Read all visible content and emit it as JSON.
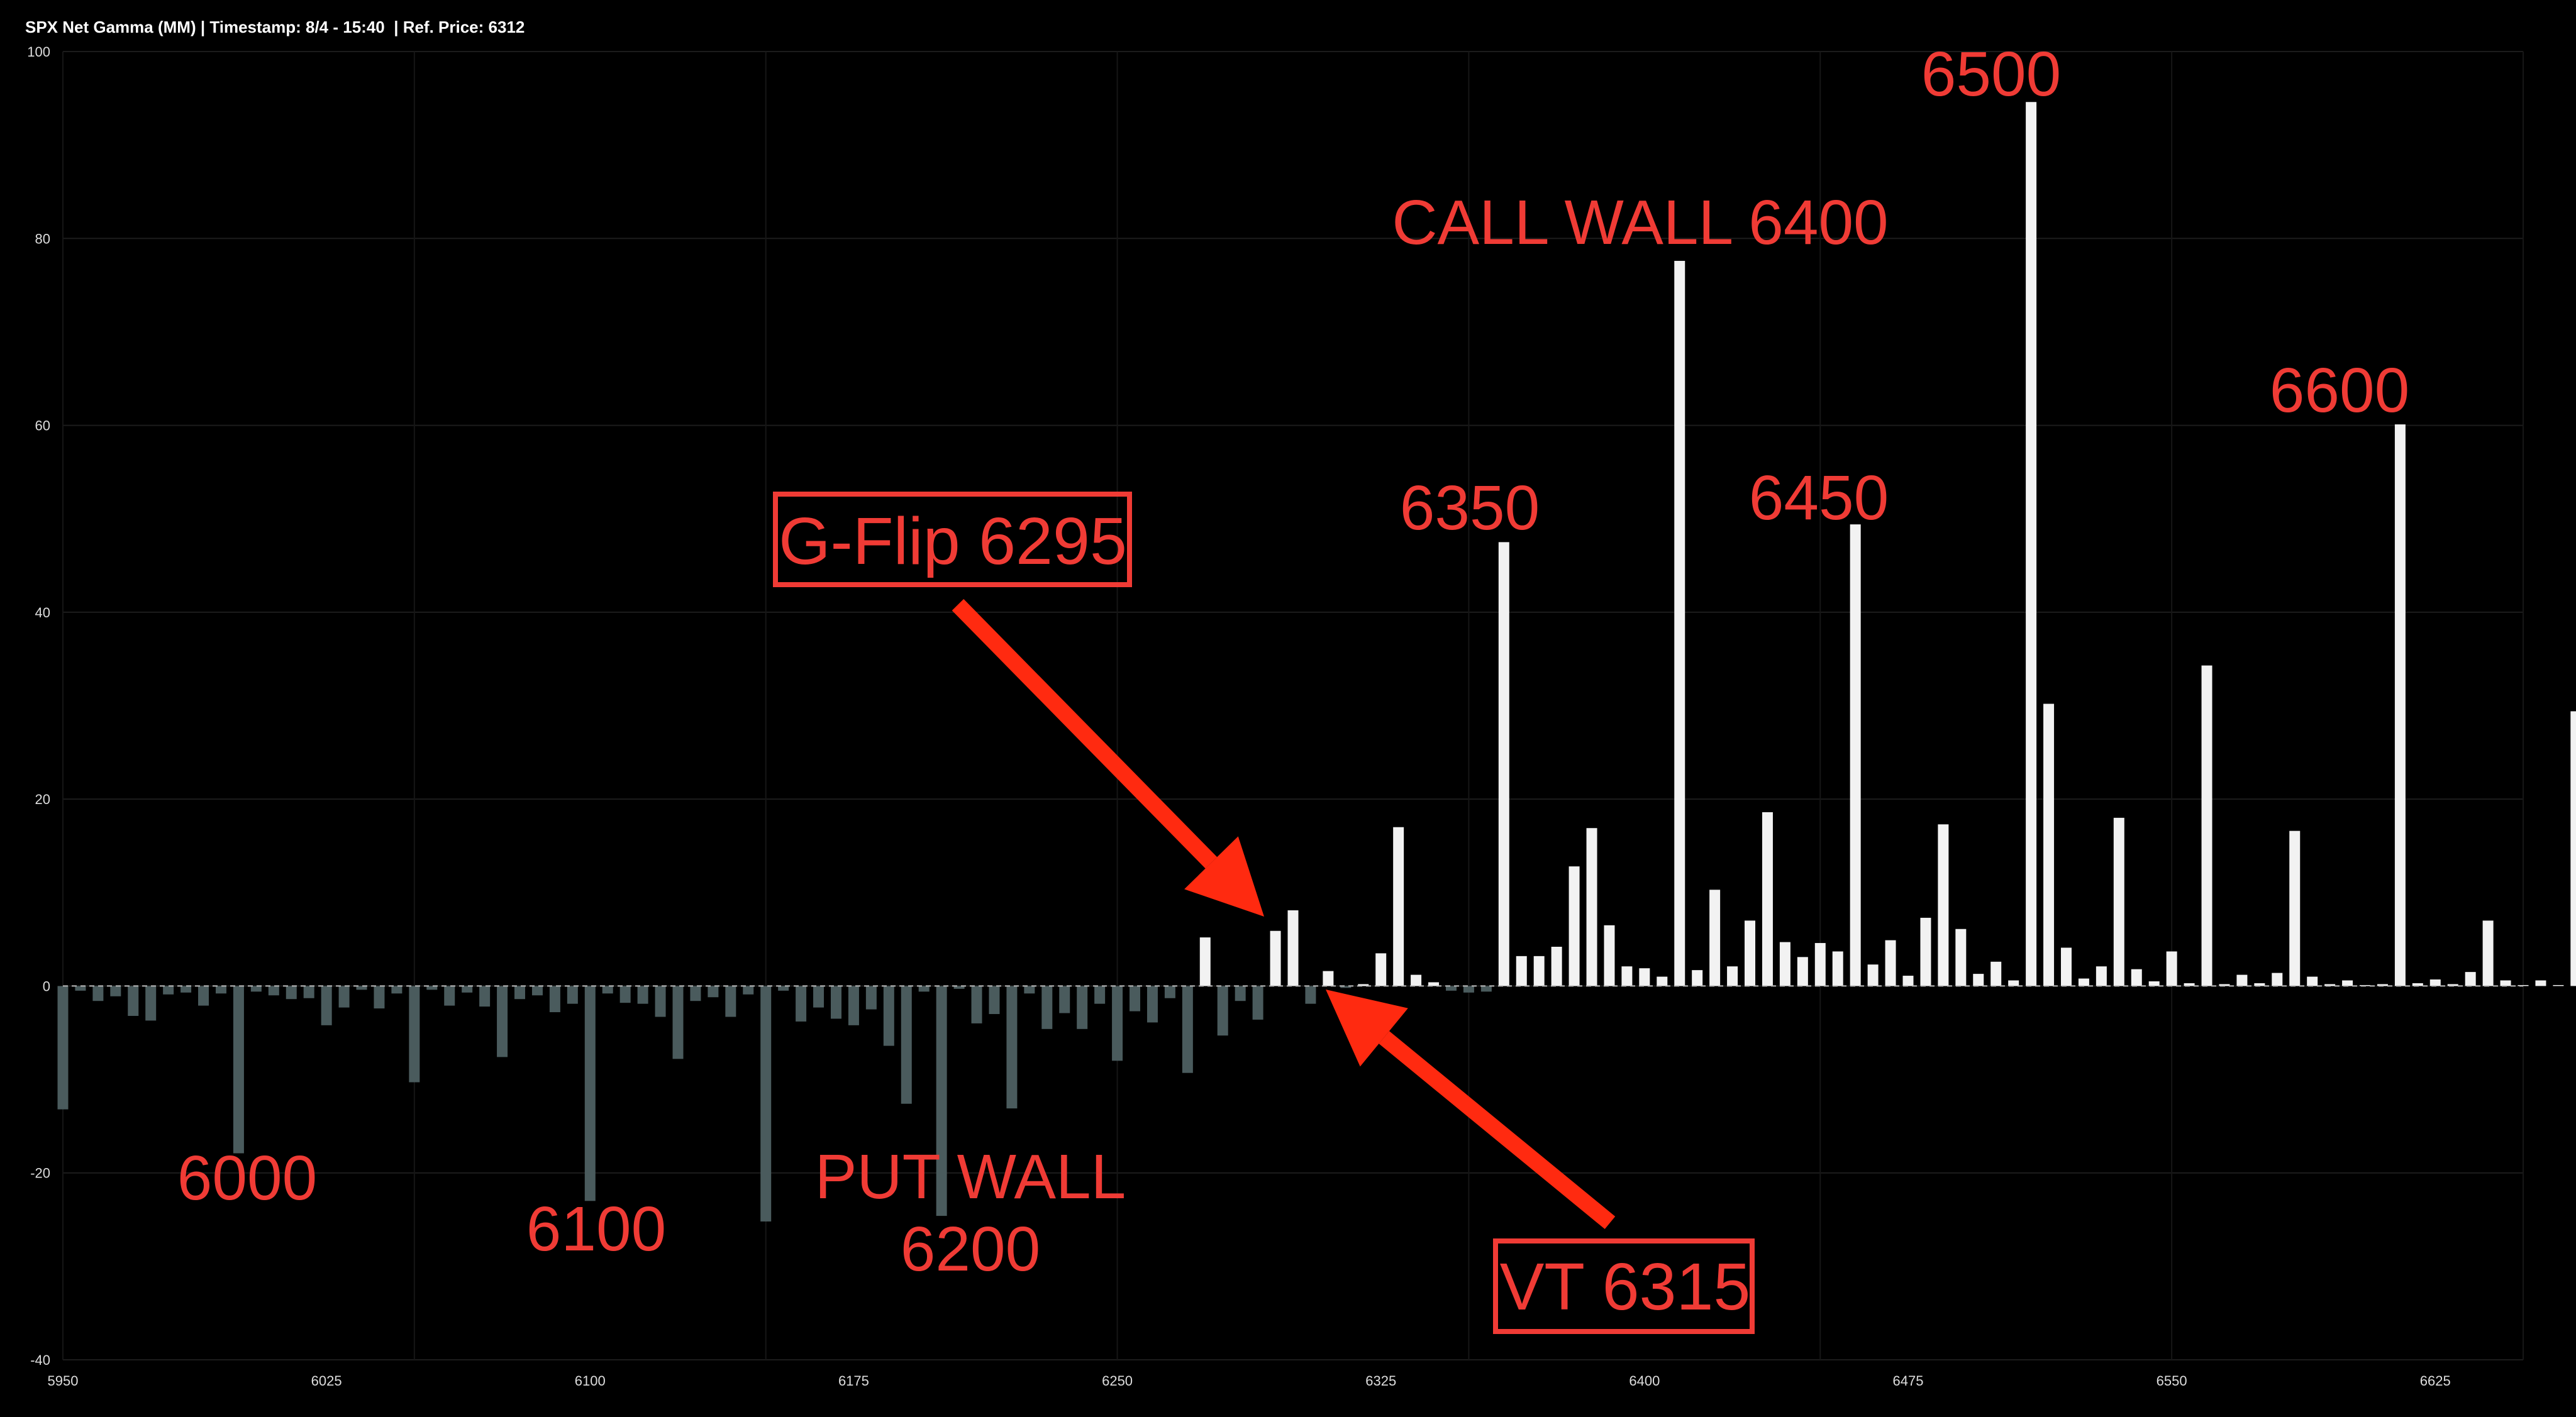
{
  "chart_data": {
    "type": "bar",
    "title": "SPX Net Gamma (MM) | Timestamp: 8/4 - 15:40  | Ref. Price: 6312",
    "xlabel": "",
    "ylabel": "",
    "xlim": [
      5950,
      6650
    ],
    "ylim": [
      -40,
      100
    ],
    "x_ticks": [
      5950,
      6025,
      6100,
      6175,
      6250,
      6325,
      6400,
      6475,
      6550,
      6625
    ],
    "y_ticks": [
      -40,
      -20,
      0,
      20,
      40,
      60,
      80,
      100
    ],
    "grid": true,
    "strike_step": 5,
    "x_start": 5950,
    "colors": {
      "negative": "#4a5b5d",
      "positive": "#f2f2f2",
      "annotation": "#f03b35",
      "arrow": "#ff2a10"
    },
    "values": [
      -13.2,
      -0.5,
      -1.6,
      -1.1,
      -3.2,
      -3.7,
      -0.9,
      -0.7,
      -2.1,
      -0.8,
      -17.9,
      -0.6,
      -1.0,
      -1.4,
      -1.3,
      -4.2,
      -2.3,
      -0.4,
      -2.4,
      -0.8,
      -10.3,
      -0.4,
      -2.1,
      -0.7,
      -2.2,
      -7.6,
      -1.4,
      -1.0,
      -2.8,
      -1.9,
      -23.0,
      -0.8,
      -1.8,
      -1.9,
      -3.3,
      -7.8,
      -1.6,
      -1.2,
      -3.3,
      -0.9,
      -25.2,
      -0.5,
      -3.8,
      -2.3,
      -3.5,
      -4.2,
      -2.5,
      -6.4,
      -12.6,
      -0.6,
      -24.6,
      -0.3,
      -4.0,
      -3.0,
      -13.1,
      -0.8,
      -4.6,
      -2.9,
      -4.6,
      -1.9,
      -8.0,
      -2.7,
      -3.9,
      -1.3,
      -9.3,
      5.2,
      -5.3,
      -1.6,
      -3.6,
      5.9,
      8.1,
      -1.9,
      1.6,
      -0.2,
      0.2,
      3.5,
      17.0,
      1.2,
      0.4,
      -0.5,
      -0.7,
      -0.6,
      47.5,
      3.2,
      3.2,
      4.2,
      12.8,
      16.9,
      6.5,
      2.1,
      1.9,
      1.0,
      77.6,
      1.7,
      10.3,
      2.1,
      7.0,
      18.6,
      4.7,
      3.1,
      4.6,
      3.7,
      49.4,
      2.3,
      4.9,
      1.1,
      7.3,
      17.3,
      6.1,
      1.3,
      2.6,
      0.6,
      94.6,
      30.2,
      4.1,
      0.8,
      2.1,
      18.0,
      1.8,
      0.5,
      3.7,
      0.3,
      34.3,
      0.2,
      1.2,
      0.3,
      1.4,
      16.6,
      1.0,
      0.2,
      0.6,
      0.1,
      0.2,
      60.1,
      0.3,
      0.7,
      0.2,
      1.5,
      7.0,
      0.6,
      0.1,
      0.6,
      0.1,
      29.4
    ],
    "annotations": [
      {
        "text": "6000",
        "boxed": false,
        "lines": [
          "6000"
        ]
      },
      {
        "text": "6100",
        "boxed": false,
        "lines": [
          "6100"
        ]
      },
      {
        "text": "PUT WALL 6200",
        "boxed": false,
        "lines": [
          "PUT WALL",
          "6200"
        ]
      },
      {
        "text": "G-Flip 6295",
        "boxed": true,
        "lines": [
          "G-Flip 6295"
        ]
      },
      {
        "text": "VT 6315",
        "boxed": true,
        "lines": [
          "VT 6315"
        ]
      },
      {
        "text": "6350",
        "boxed": false,
        "lines": [
          "6350"
        ]
      },
      {
        "text": "CALL WALL 6400",
        "boxed": false,
        "lines": [
          "CALL WALL 6400"
        ]
      },
      {
        "text": "6450",
        "boxed": false,
        "lines": [
          "6450"
        ]
      },
      {
        "text": "6500",
        "boxed": false,
        "lines": [
          "6500"
        ]
      },
      {
        "text": "6600",
        "boxed": false,
        "lines": [
          "6600"
        ]
      }
    ]
  }
}
